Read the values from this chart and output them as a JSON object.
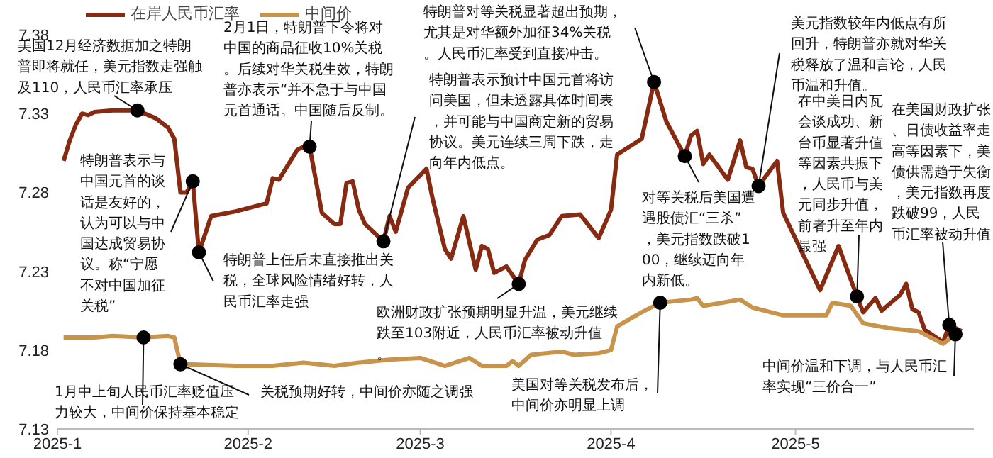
{
  "chart_data": {
    "type": "line",
    "legend": "top",
    "xlim": [
      "2025-01-01",
      "2025-05-30"
    ],
    "ylim": [
      7.13,
      7.38
    ],
    "yticks": [
      7.13,
      7.18,
      7.23,
      7.28,
      7.33,
      7.38
    ],
    "xticks": [
      {
        "value": "2025-01-01",
        "label": "2025-1"
      },
      {
        "value": "2025-02-01",
        "label": "2025-2"
      },
      {
        "value": "2025-03-01",
        "label": "2025-3"
      },
      {
        "value": "2025-04-01",
        "label": "2025-4"
      },
      {
        "value": "2025-05-01",
        "label": "2025-5"
      }
    ],
    "series": [
      {
        "name": "在岸人民币汇率",
        "color": "#862a12",
        "x": [
          "2025-01-02",
          "2025-01-03",
          "2025-01-04",
          "2025-01-05",
          "2025-01-06",
          "2025-01-07",
          "2025-01-10",
          "2025-01-14",
          "2025-01-17",
          "2025-01-19",
          "2025-01-20",
          "2025-01-21",
          "2025-01-22",
          "2025-01-23",
          "2025-01-24",
          "2025-01-26",
          "2025-01-30",
          "2025-02-04",
          "2025-02-05",
          "2025-02-06",
          "2025-02-09",
          "2025-02-10",
          "2025-02-11",
          "2025-02-13",
          "2025-02-15",
          "2025-02-16",
          "2025-02-17",
          "2025-02-18",
          "2025-02-19",
          "2025-02-20",
          "2025-02-23",
          "2025-02-24",
          "2025-02-25",
          "2025-02-27",
          "2025-03-02",
          "2025-03-03",
          "2025-03-05",
          "2025-03-06",
          "2025-03-08",
          "2025-03-10",
          "2025-03-11",
          "2025-03-12",
          "2025-03-13",
          "2025-03-15",
          "2025-03-17",
          "2025-03-18",
          "2025-03-20",
          "2025-03-22",
          "2025-03-24",
          "2025-03-27",
          "2025-03-30",
          "2025-04-01",
          "2025-04-02",
          "2025-04-06",
          "2025-04-08",
          "2025-04-10",
          "2025-04-13",
          "2025-04-14",
          "2025-04-15",
          "2025-04-16",
          "2025-04-17",
          "2025-04-20",
          "2025-04-22",
          "2025-04-23",
          "2025-04-24",
          "2025-04-25",
          "2025-04-28",
          "2025-04-29",
          "2025-05-05",
          "2025-05-08",
          "2025-05-11",
          "2025-05-12",
          "2025-05-14",
          "2025-05-15",
          "2025-05-18",
          "2025-05-19",
          "2025-05-20",
          "2025-05-21",
          "2025-05-22",
          "2025-05-25",
          "2025-05-26",
          "2025-05-28"
        ],
        "values": [
          7.3,
          7.313,
          7.323,
          7.33,
          7.329,
          7.331,
          7.332,
          7.332,
          7.327,
          7.321,
          7.314,
          7.28,
          7.28,
          7.287,
          7.242,
          7.265,
          7.268,
          7.273,
          7.289,
          7.288,
          7.307,
          7.309,
          7.309,
          7.267,
          7.26,
          7.26,
          7.286,
          7.287,
          7.269,
          7.26,
          7.249,
          7.265,
          7.255,
          7.283,
          7.295,
          7.276,
          7.244,
          7.238,
          7.265,
          7.231,
          7.246,
          7.244,
          7.229,
          7.233,
          7.222,
          7.237,
          7.25,
          7.253,
          7.265,
          7.266,
          7.251,
          7.269,
          7.304,
          7.314,
          7.35,
          7.325,
          7.303,
          7.316,
          7.319,
          7.298,
          7.304,
          7.288,
          7.313,
          7.296,
          7.295,
          7.284,
          7.3,
          7.267,
          7.218,
          7.246,
          7.214,
          7.204,
          7.213,
          7.205,
          7.215,
          7.222,
          7.206,
          7.204,
          7.193,
          7.185,
          7.196,
          7.192
        ]
      },
      {
        "name": "中间价",
        "color": "#c8934a",
        "x": [
          "2025-01-02",
          "2025-01-07",
          "2025-01-10",
          "2025-01-15",
          "2025-01-19",
          "2025-01-20",
          "2025-01-21",
          "2025-01-22",
          "2025-01-30",
          "2025-02-05",
          "2025-02-10",
          "2025-02-15",
          "2025-02-19",
          "2025-02-24",
          "2025-03-01",
          "2025-03-05",
          "2025-03-09",
          "2025-03-11",
          "2025-03-15",
          "2025-03-16",
          "2025-03-17",
          "2025-03-19",
          "2025-03-24",
          "2025-03-26",
          "2025-03-30",
          "2025-04-01",
          "2025-04-02",
          "2025-04-06",
          "2025-04-09",
          "2025-04-14",
          "2025-04-15",
          "2025-04-16",
          "2025-04-22",
          "2025-04-24",
          "2025-04-29",
          "2025-05-06",
          "2025-05-07",
          "2025-05-10",
          "2025-05-12",
          "2025-05-16",
          "2025-05-21",
          "2025-05-25",
          "2025-05-27",
          "2025-05-28"
        ],
        "values": [
          7.188,
          7.188,
          7.189,
          7.188,
          7.189,
          7.188,
          7.171,
          7.171,
          7.17,
          7.17,
          7.172,
          7.17,
          7.172,
          7.174,
          7.175,
          7.17,
          7.175,
          7.17,
          7.17,
          7.173,
          7.17,
          7.177,
          7.179,
          7.177,
          7.178,
          7.18,
          7.195,
          7.204,
          7.21,
          7.212,
          7.213,
          7.208,
          7.212,
          7.207,
          7.202,
          7.202,
          7.21,
          7.208,
          7.197,
          7.194,
          7.192,
          7.184,
          7.19,
          7.192
        ]
      }
    ],
    "annotations": [
      {
        "text": "美国12月经济数据加之特朗普即将就任，美元指数走强触及110，人民币汇率承压",
        "x": "2025-01-14",
        "y": 7.332
      },
      {
        "text": "特朗普表示与中国元首的谈话是友好的，认为可以与中国达成贸易协议。称“宁愿不对中国加征关税”",
        "x": "2025-01-23",
        "y": 7.287
      },
      {
        "text": "特朗普上任后未直接推出关税，全球风险情绪好转，人民币汇率走强",
        "x": "2025-01-24",
        "y": 7.242
      },
      {
        "text": "2月1日，特朗普下令将对中国的商品征收10%关税。后续对华关税生效，特朗普亦表示“并不急于与中国元首通话。中国随后反制。",
        "x": "2025-02-11",
        "y": 7.309
      },
      {
        "text": "特朗普表示预计中国元首将访问美国，但未透露具体时间表，并可能与中国商定新的贸易协议。美元连续三周下跌，走向年内低点。",
        "x": "2025-02-23",
        "y": 7.249
      },
      {
        "text": "特朗普对等关税显著超出预期，尤其是对华额外加征34%关税。人民币汇率受到直接冲击。",
        "x": "2025-04-08",
        "y": 7.35
      },
      {
        "text": "欧洲财政扩张预期明显升温，美元继续跌至103附近，人民币汇率被动升值。",
        "x": "2025-03-17",
        "y": 7.222
      },
      {
        "text": "对等关税后美国遭遇股债汇“三杀”，美元指数跌破100，继续迈向年内新低。",
        "x": "2025-04-13",
        "y": 7.303
      },
      {
        "text": "美元指数较年内低点有所回升，特朗普亦就对华关税释放了温和言论，人民币温和升值。",
        "x": "2025-04-25",
        "y": 7.284
      },
      {
        "text": "在中美日内瓦会谈成功、新台币显著升值等因素共振下，人民币与美元同步升值，前者升至年内最强",
        "x": "2025-05-11",
        "y": 7.214
      },
      {
        "text": "在美国财政扩张、日债收益率走高等因素下，美债供需趋于失衡，美元指数再度跌破99，人民币汇率被动升值",
        "x": "2025-05-26",
        "y": 7.196
      },
      {
        "text": "1月中上旬人民币汇率贬值压力较大，中间价保持基本稳定",
        "x": "2025-01-15",
        "y": 7.188
      },
      {
        "text": "关税预期好转，中间价亦随之调强",
        "x": "2025-01-21",
        "y": 7.171
      },
      {
        "text": "美国对等关税发布后，中间价亦明显上调",
        "x": "2025-04-09",
        "y": 7.21
      },
      {
        "text": "中间价温和下调，与人民币汇率实现“三价合一”",
        "x": "2025-05-27",
        "y": 7.19
      }
    ]
  }
}
